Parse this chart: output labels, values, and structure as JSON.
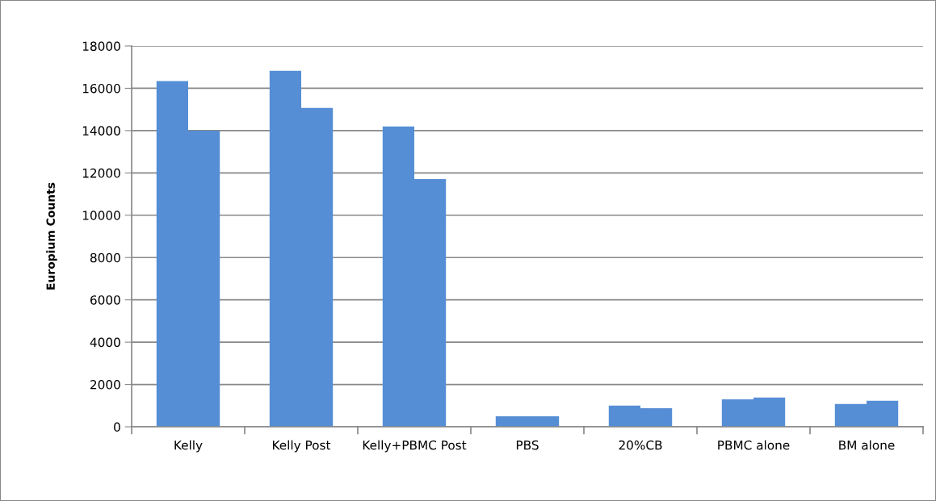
{
  "chart_data": {
    "type": "bar",
    "ylabel": "Europium Counts",
    "categories": [
      "Kelly",
      "Kelly Post",
      "Kelly+PBMC Post",
      "PBS",
      "20%CB",
      "PBMC alone",
      "BM alone"
    ],
    "series": [
      {
        "color": "#558ed5",
        "values": [
          16340,
          16830,
          14200,
          500,
          1000,
          1300,
          1080
        ]
      },
      {
        "color": "#558ed5",
        "values": [
          14000,
          15070,
          11710,
          500,
          880,
          1380,
          1230
        ]
      }
    ],
    "ylim": [
      0,
      18000
    ],
    "yticks": [
      0,
      2000,
      4000,
      6000,
      8000,
      10000,
      12000,
      14000,
      16000,
      18000
    ],
    "grid": "y",
    "legend": false
  }
}
